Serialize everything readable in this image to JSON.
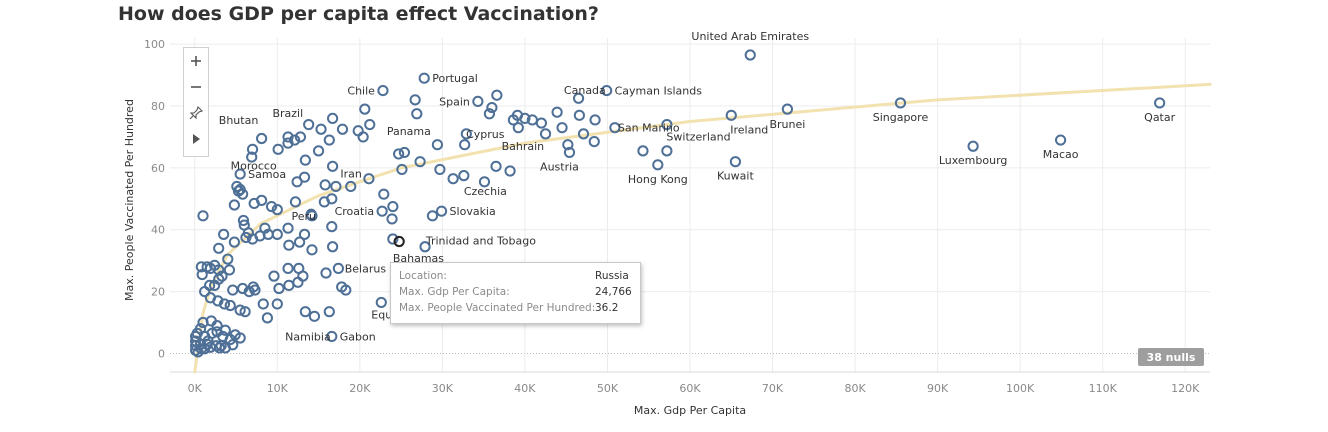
{
  "title": "How does GDP per capita effect Vaccination?",
  "toolbar": {
    "zoom_in_icon": "plus-icon",
    "zoom_out_icon": "minus-icon",
    "pin_icon": "pin-icon",
    "expand_icon": "play-icon"
  },
  "nulls_badge": "38 nulls",
  "tooltip": {
    "rows": [
      {
        "key": "Location:",
        "value": "Russia"
      },
      {
        "key": "Max. Gdp Per Capita:",
        "value": "24,766"
      },
      {
        "key": "Max. People Vaccinated Per Hundred:",
        "value": "36.2"
      }
    ]
  },
  "colors": {
    "marker": "#4e6f96",
    "trend": "#f2e2b0",
    "grid": "#ececec",
    "selected": "#222222"
  },
  "chart_data": {
    "type": "scatter",
    "xlabel": "Max. Gdp Per Capita",
    "ylabel": "Max. People Vaccinated Per Hundred",
    "xlim": [
      -3000,
      123000
    ],
    "ylim": [
      -6,
      102
    ],
    "x_ticks": [
      0,
      10000,
      20000,
      30000,
      40000,
      50000,
      60000,
      70000,
      80000,
      90000,
      100000,
      110000,
      120000
    ],
    "x_tick_labels": [
      "0K",
      "10K",
      "20K",
      "30K",
      "40K",
      "50K",
      "60K",
      "70K",
      "80K",
      "90K",
      "100K",
      "110K",
      "120K"
    ],
    "y_ticks": [
      0,
      20,
      40,
      60,
      80,
      100
    ],
    "y_tick_labels": [
      "0",
      "20",
      "40",
      "60",
      "80",
      "100"
    ],
    "grid": true,
    "trend_line": {
      "type": "logarithmic",
      "x": [
        0,
        500,
        1000,
        2000,
        4000,
        8000,
        15000,
        25000,
        40000,
        60000,
        90000,
        123000
      ],
      "y": [
        -6,
        4,
        13,
        22,
        32,
        42,
        51,
        60,
        68,
        75,
        82,
        87
      ]
    },
    "labeled_points": [
      {
        "label": "United Arab Emirates",
        "x": 67300,
        "y": 96.5
      },
      {
        "label": "Portugal",
        "x": 27800,
        "y": 89
      },
      {
        "label": "Chile",
        "x": 22800,
        "y": 85
      },
      {
        "label": "Cayman Islands",
        "x": 49900,
        "y": 85
      },
      {
        "label": "Canada",
        "x": 44000,
        "y": 82
      },
      {
        "label": "Spain",
        "x": 34300,
        "y": 81.5
      },
      {
        "label": "Brazil",
        "x": 14100,
        "y": 74.5
      },
      {
        "label": "San Marino",
        "x": 50300,
        "y": 73
      },
      {
        "label": "Brunei",
        "x": 71800,
        "y": 79
      },
      {
        "label": "Singapore",
        "x": 85500,
        "y": 81
      },
      {
        "label": "Qatar",
        "x": 116900,
        "y": 81
      },
      {
        "label": "Bhutan",
        "x": 8000,
        "y": 75.5
      },
      {
        "label": "Panama",
        "x": 22300,
        "y": 72
      },
      {
        "label": "Cyprus",
        "x": 31900,
        "y": 71
      },
      {
        "label": "Switzerland",
        "x": 56900,
        "y": 74
      },
      {
        "label": "Ireland",
        "x": 67300,
        "y": 77
      },
      {
        "label": "Bahrain",
        "x": 43300,
        "y": 67
      },
      {
        "label": "Luxembourg",
        "x": 94300,
        "y": 67
      },
      {
        "label": "Macao",
        "x": 104900,
        "y": 69
      },
      {
        "label": "Iran",
        "x": 19100,
        "y": 64
      },
      {
        "label": "Morocco",
        "x": 7500,
        "y": 66
      },
      {
        "label": "Austria",
        "x": 45400,
        "y": 65
      },
      {
        "label": "Hong Kong",
        "x": 56100,
        "y": 61
      },
      {
        "label": "Kuwait",
        "x": 65500,
        "y": 62
      },
      {
        "label": "Samoa",
        "x": 5500,
        "y": 58
      },
      {
        "label": "Czechia",
        "x": 32600,
        "y": 57
      },
      {
        "label": "Peru",
        "x": 12200,
        "y": 49
      },
      {
        "label": "Croatia",
        "x": 22700,
        "y": 46
      },
      {
        "label": "Slovakia",
        "x": 29900,
        "y": 46
      },
      {
        "label": "Trinidad and Tobago",
        "x": 28000,
        "y": 41
      },
      {
        "label": "Belarus",
        "x": 17200,
        "y": 27.5
      },
      {
        "label": "Bahamas",
        "x": 24000,
        "y": 37
      },
      {
        "label": "Equatorial Guinea",
        "x": 22600,
        "y": 16.5
      },
      {
        "label": "Namibia",
        "x": 9500,
        "y": 11
      },
      {
        "label": "Gabon",
        "x": 16600,
        "y": 5.5
      }
    ],
    "selected_point": {
      "label": "Russia",
      "x": 24766,
      "y": 36.2
    },
    "points": [
      [
        67300,
        96.5
      ],
      [
        27800,
        89
      ],
      [
        22800,
        85
      ],
      [
        49900,
        85
      ],
      [
        36600,
        83.5
      ],
      [
        26700,
        82
      ],
      [
        34300,
        81.5
      ],
      [
        46500,
        82.5
      ],
      [
        36000,
        79.5
      ],
      [
        20600,
        79
      ],
      [
        35700,
        77.5
      ],
      [
        43900,
        78
      ],
      [
        39100,
        77
      ],
      [
        46600,
        77
      ],
      [
        48500,
        75.5
      ],
      [
        40900,
        75.5
      ],
      [
        38600,
        75.5
      ],
      [
        42000,
        74.5
      ],
      [
        44500,
        73
      ],
      [
        47100,
        71
      ],
      [
        32900,
        71
      ],
      [
        26900,
        77.5
      ],
      [
        21200,
        74
      ],
      [
        13800,
        74
      ],
      [
        16700,
        76
      ],
      [
        17900,
        72.5
      ],
      [
        11300,
        70
      ],
      [
        12100,
        69
      ],
      [
        10100,
        66
      ],
      [
        11300,
        68
      ],
      [
        12800,
        70
      ],
      [
        15300,
        72.5
      ],
      [
        16300,
        69
      ],
      [
        19800,
        72
      ],
      [
        20400,
        70
      ],
      [
        15000,
        65.5
      ],
      [
        7000,
        66
      ],
      [
        8100,
        69.5
      ],
      [
        6900,
        63.5
      ],
      [
        13400,
        62.5
      ],
      [
        16700,
        60.5
      ],
      [
        25400,
        65
      ],
      [
        27300,
        62
      ],
      [
        29400,
        67.5
      ],
      [
        32700,
        67.5
      ],
      [
        24700,
        64.5
      ],
      [
        25100,
        59.5
      ],
      [
        29700,
        59.5
      ],
      [
        31300,
        56.5
      ],
      [
        32600,
        57.5
      ],
      [
        36500,
        60.5
      ],
      [
        38200,
        59
      ],
      [
        35100,
        55.5
      ],
      [
        39200,
        73
      ],
      [
        42500,
        71
      ],
      [
        40000,
        76
      ],
      [
        45400,
        65
      ],
      [
        45200,
        67.5
      ],
      [
        48400,
        68.5
      ],
      [
        50900,
        73
      ],
      [
        54300,
        65.5
      ],
      [
        57200,
        65.5
      ],
      [
        56100,
        61
      ],
      [
        57200,
        74
      ],
      [
        65000,
        77
      ],
      [
        65500,
        62
      ],
      [
        71800,
        79
      ],
      [
        85500,
        81
      ],
      [
        116900,
        81
      ],
      [
        94300,
        67
      ],
      [
        104900,
        69
      ],
      [
        5500,
        58
      ],
      [
        5100,
        54
      ],
      [
        5300,
        52.5
      ],
      [
        5800,
        51.5
      ],
      [
        5500,
        53
      ],
      [
        7200,
        48.5
      ],
      [
        4800,
        48
      ],
      [
        8100,
        49.5
      ],
      [
        9300,
        47.5
      ],
      [
        10000,
        46.5
      ],
      [
        12200,
        49
      ],
      [
        13300,
        57
      ],
      [
        12400,
        55.5
      ],
      [
        15700,
        49
      ],
      [
        15800,
        54.5
      ],
      [
        16600,
        50
      ],
      [
        17100,
        54
      ],
      [
        18900,
        54
      ],
      [
        21100,
        56.5
      ],
      [
        22900,
        51.5
      ],
      [
        22700,
        46
      ],
      [
        24000,
        47.5
      ],
      [
        29900,
        46
      ],
      [
        28800,
        44.5
      ],
      [
        23900,
        43.5
      ],
      [
        27900,
        34.5
      ],
      [
        24000,
        37
      ],
      [
        16600,
        41
      ],
      [
        14200,
        44.5
      ],
      [
        11300,
        40.5
      ],
      [
        10000,
        38.5
      ],
      [
        8500,
        40.5
      ],
      [
        7900,
        38
      ],
      [
        8900,
        38.5
      ],
      [
        7000,
        37
      ],
      [
        6500,
        39
      ],
      [
        6000,
        41.5
      ],
      [
        3500,
        38.5
      ],
      [
        2900,
        34
      ],
      [
        4000,
        30.5
      ],
      [
        2900,
        24
      ],
      [
        5900,
        43
      ],
      [
        4800,
        36
      ],
      [
        6200,
        37.5
      ],
      [
        1000,
        44.5
      ],
      [
        1500,
        28
      ],
      [
        2400,
        28.5
      ],
      [
        2900,
        27
      ],
      [
        1900,
        27.5
      ],
      [
        4200,
        27
      ],
      [
        3300,
        25
      ],
      [
        5800,
        21
      ],
      [
        4600,
        20.5
      ],
      [
        7300,
        20.5
      ],
      [
        6600,
        20
      ],
      [
        7100,
        21.5
      ],
      [
        8300,
        16
      ],
      [
        9600,
        25
      ],
      [
        11300,
        27.5
      ],
      [
        12600,
        27.5
      ],
      [
        13100,
        25
      ],
      [
        12500,
        23
      ],
      [
        11400,
        22
      ],
      [
        10200,
        21
      ],
      [
        10000,
        16
      ],
      [
        14200,
        33.5
      ],
      [
        14100,
        45
      ],
      [
        12700,
        36
      ],
      [
        11400,
        35
      ],
      [
        13300,
        38.5
      ],
      [
        16700,
        34.5
      ],
      [
        17400,
        27.5
      ],
      [
        17800,
        21.5
      ],
      [
        18300,
        20.5
      ],
      [
        15900,
        26
      ],
      [
        16300,
        13.5
      ],
      [
        14500,
        12
      ],
      [
        13400,
        13.5
      ],
      [
        22600,
        16.5
      ],
      [
        8800,
        11.5
      ],
      [
        6100,
        13.5
      ],
      [
        5500,
        14
      ],
      [
        4300,
        15.5
      ],
      [
        3600,
        16
      ],
      [
        2800,
        17
      ],
      [
        1900,
        18
      ],
      [
        1200,
        20
      ],
      [
        1800,
        22
      ],
      [
        2400,
        22
      ],
      [
        900,
        25.5
      ],
      [
        800,
        28
      ],
      [
        2000,
        10.5
      ],
      [
        1000,
        10
      ],
      [
        700,
        8
      ],
      [
        300,
        6.5
      ],
      [
        100,
        5.5
      ],
      [
        100,
        4
      ],
      [
        100,
        2.5
      ],
      [
        100,
        1
      ],
      [
        400,
        0.5
      ],
      [
        800,
        1.5
      ],
      [
        1200,
        1.5
      ],
      [
        1500,
        3
      ],
      [
        700,
        3
      ],
      [
        1900,
        2
      ],
      [
        2600,
        2.5
      ],
      [
        3200,
        2.5
      ],
      [
        3700,
        1.8
      ],
      [
        4600,
        2.8
      ],
      [
        4300,
        4.5
      ],
      [
        3400,
        5.5
      ],
      [
        5500,
        5
      ],
      [
        4900,
        6
      ],
      [
        3700,
        7.5
      ],
      [
        2700,
        9
      ],
      [
        1200,
        5.5
      ],
      [
        2100,
        6.5
      ],
      [
        2700,
        7
      ],
      [
        1600,
        4
      ],
      [
        3000,
        1.8
      ],
      [
        16600,
        5.5
      ]
    ]
  }
}
